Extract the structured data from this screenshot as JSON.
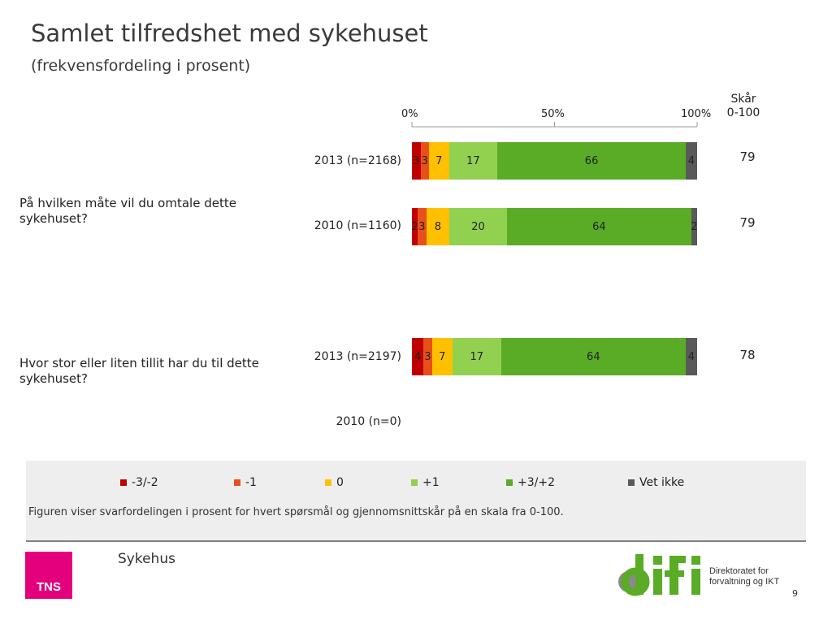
{
  "page": {
    "title": "Samlet tilfredshet med sykehuset",
    "subtitle": "(frekvensfordeling i prosent)",
    "score_header_line1": "Skår",
    "score_header_line2": "0-100",
    "footer_label": "Sykehus",
    "note": "Figuren viser svarfordelingen i prosent for hvert spørsmål og gjennomsnittskår på en skala fra 0-100.",
    "page_number": "9",
    "logo_tns": "TNS",
    "logo_difi_line1": "Direktoratet for",
    "logo_difi_line2": "forvaltning og IKT"
  },
  "chart_data": {
    "type": "bar",
    "orientation": "horizontal",
    "stacked": true,
    "axis_ticks": [
      "0%",
      "50%",
      "100%"
    ],
    "xlim": [
      0,
      100
    ],
    "series_legend": [
      {
        "name": "-3/-2",
        "color": "#c00000"
      },
      {
        "name": "-1",
        "color": "#e8501a"
      },
      {
        "name": "0",
        "color": "#ffc000"
      },
      {
        "name": "+1",
        "color": "#92d050"
      },
      {
        "name": "+3/+2",
        "color": "#5aab25"
      },
      {
        "name": "Vet ikke",
        "color": "#595959"
      }
    ],
    "questions": [
      {
        "text": "På hvilken måte vil du omtale dette sykehuset?",
        "rows": [
          {
            "label": "2013 (n=2168)",
            "values": [
              3,
              3,
              7,
              17,
              66,
              4
            ],
            "score": "79"
          },
          {
            "label": "2010 (n=1160)",
            "values": [
              2,
              3,
              8,
              20,
              64,
              2
            ],
            "score": "79"
          }
        ]
      },
      {
        "text": "Hvor stor eller liten tillit har du til dette sykehuset?",
        "rows": [
          {
            "label": "2013 (n=2197)",
            "values": [
              4,
              3,
              7,
              17,
              64,
              4
            ],
            "score": "78"
          },
          {
            "label": "2010 (n=0)",
            "values": [],
            "score": ""
          }
        ]
      }
    ]
  }
}
